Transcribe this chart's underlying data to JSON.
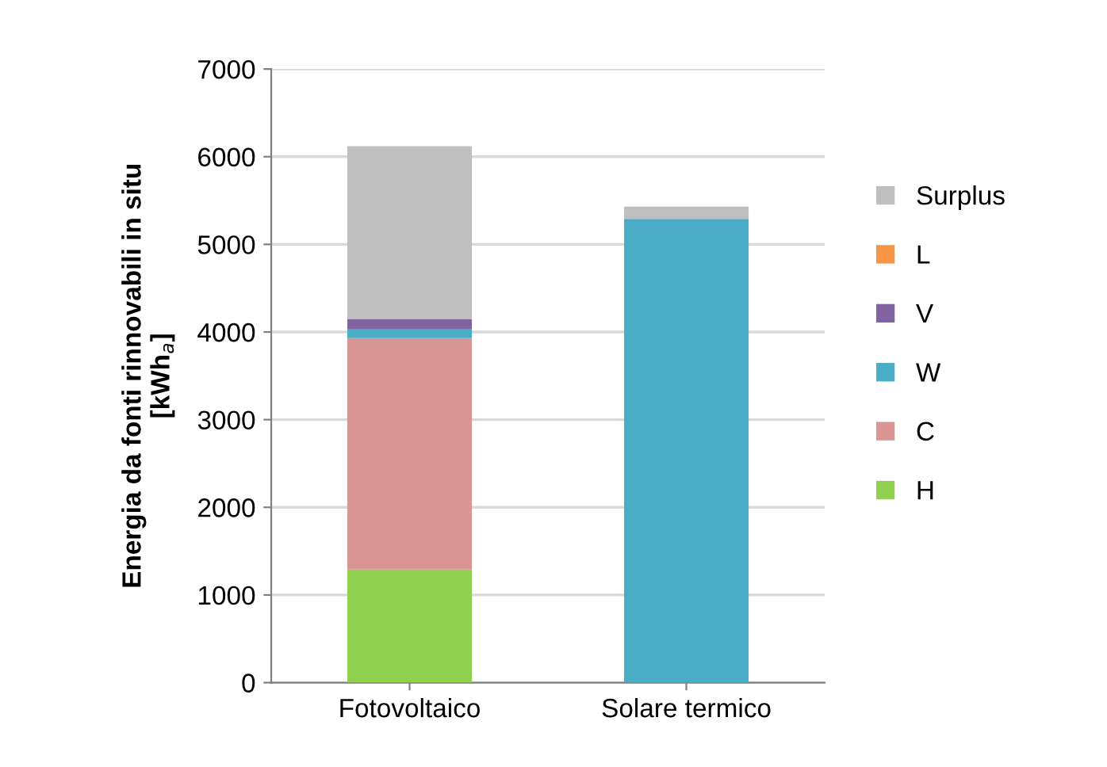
{
  "chart_data": {
    "type": "bar",
    "stacked": true,
    "ylabel": "Energia da fonti rinnovabili in situ\n[kWh$_{a}$]",
    "categories": [
      "Fotovoltaico",
      "Solare termico"
    ],
    "series": [
      {
        "name": "H",
        "color": "#92d050",
        "values": [
          1290,
          0
        ]
      },
      {
        "name": "C",
        "color": "#da9694",
        "values": [
          2640,
          0
        ]
      },
      {
        "name": "W",
        "color": "#4bacc6",
        "values": [
          100,
          5290
        ]
      },
      {
        "name": "V",
        "color": "#8064a2",
        "values": [
          120,
          0
        ]
      },
      {
        "name": "L",
        "color": "#f79646",
        "values": [
          0,
          0
        ]
      },
      {
        "name": "Surplus",
        "color": "#bfbfbf",
        "values": [
          1970,
          140
        ]
      }
    ],
    "ylim": [
      0,
      7000
    ],
    "yticks": [
      0,
      1000,
      2000,
      3000,
      4000,
      5000,
      6000,
      7000
    ],
    "grid": "y",
    "legend": "right"
  }
}
